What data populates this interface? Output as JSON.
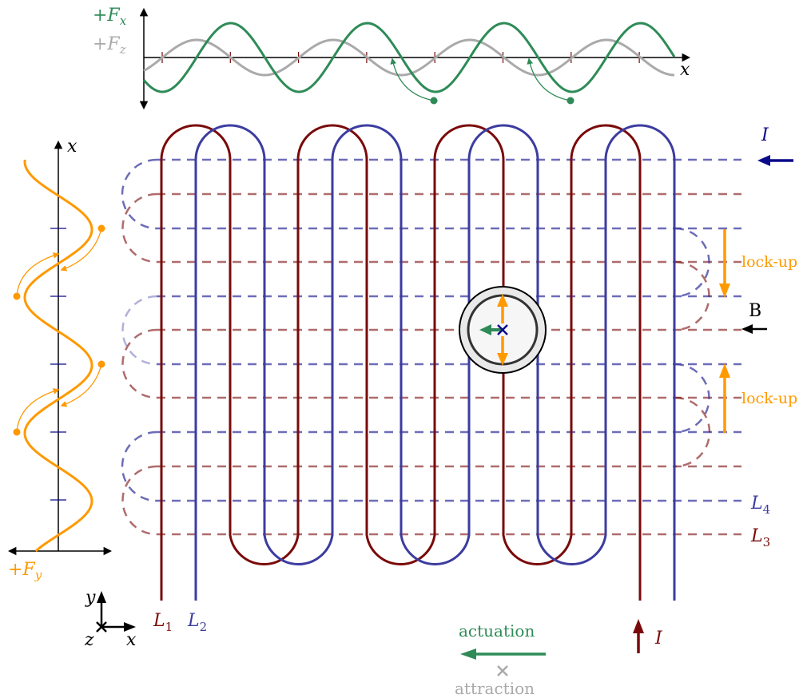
{
  "colors": {
    "red": "#7a0a0a",
    "blue": "#3c3ca0",
    "green": "#2e8b57",
    "gray": "#aaaaaa",
    "orange": "#ff9900",
    "navy": "#0a0a8a",
    "black": "#000000"
  },
  "top_plot": {
    "fx_label": "+F",
    "fx_sub": "x",
    "fz_label": "+F",
    "fz_sub": "z",
    "axis_label": "x"
  },
  "left_plot": {
    "axis_label": "x",
    "fy_label": "+F",
    "fy_sub": "y"
  },
  "lines": {
    "L1": "L",
    "L1_sub": "1",
    "L2": "L",
    "L2_sub": "2",
    "L3": "L",
    "L3_sub": "3",
    "L4": "L",
    "L4_sub": "4"
  },
  "current_top": "I",
  "current_bottom": "I",
  "field_label": "B",
  "lockup_top": "lock-up",
  "lockup_bottom": "lock-up",
  "legend": {
    "actuation": "actuation",
    "attraction": "attraction"
  },
  "axes_triad": {
    "y": "y",
    "z": "z",
    "x": "x"
  }
}
